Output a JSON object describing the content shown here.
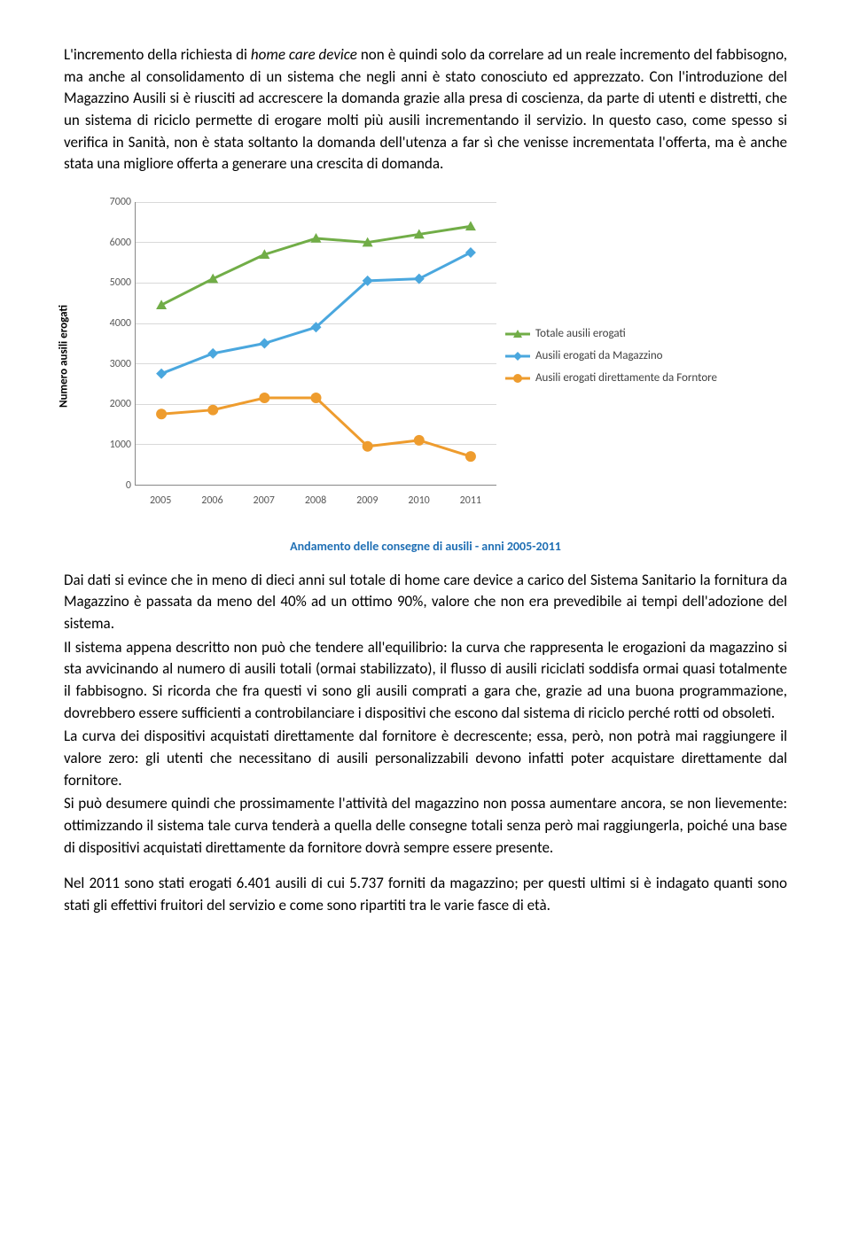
{
  "paragraphs": {
    "p1": "L'incremento della richiesta di home care device non è quindi solo da correlare ad un reale incremento del fabbisogno, ma anche al consolidamento di un sistema che negli anni è stato conosciuto ed apprezzato. Con l'introduzione del Magazzino Ausili si è riusciti ad accrescere la domanda grazie alla presa di coscienza, da parte di utenti e distretti, che un sistema di riciclo permette di erogare molti più ausili incrementando il servizio. In questo caso, come spesso si verifica in Sanità, non è stata soltanto la domanda dell'utenza a far sì che venisse incrementata l'offerta, ma è anche stata una migliore offerta a generare una crescita di domanda.",
    "p2": "Dai dati si evince che in meno di dieci anni sul totale di home care device a carico del Sistema Sanitario la fornitura da Magazzino è passata da meno del 40% ad un ottimo 90%, valore che non era prevedibile ai tempi dell'adozione del sistema.",
    "p3": "Il sistema appena descritto non può che tendere all'equilibrio: la curva che rappresenta le erogazioni da magazzino si sta avvicinando al numero di ausili totali (ormai stabilizzato), il flusso di ausili riciclati soddisfa ormai quasi totalmente il fabbisogno. Si ricorda che fra questi vi sono gli ausili comprati a gara che, grazie ad una buona programmazione, dovrebbero essere sufficienti a controbilanciare i dispositivi che escono dal sistema di riciclo perché rotti od obsoleti.",
    "p4": "La curva dei dispositivi acquistati direttamente dal fornitore è decrescente; essa, però, non potrà mai raggiungere il valore zero: gli utenti che necessitano di ausili personalizzabili devono infatti poter acquistare direttamente dal fornitore.",
    "p5": "Si può desumere quindi che prossimamente l'attività del magazzino non possa aumentare ancora, se non lievemente: ottimizzando il sistema tale curva tenderà a quella delle consegne totali senza però mai raggiungerla, poiché una base di dispositivi acquistati direttamente da fornitore dovrà sempre essere presente.",
    "p6": "Nel 2011 sono stati erogati 6.401 ausili di cui 5.737 forniti da magazzino; per questi ultimi si è indagato quanti sono stati gli effettivi fruitori del servizio e come sono ripartiti tra le varie fasce di età."
  },
  "chart": {
    "type": "line",
    "caption": "Andamento delle consegne di ausili - anni 2005-2011",
    "caption_color": "#1f6fb4",
    "ylabel": "Numero ausili erogati",
    "x_categories": [
      "2005",
      "2006",
      "2007",
      "2008",
      "2009",
      "2010",
      "2011"
    ],
    "ylim": [
      0,
      7000
    ],
    "ytick_step": 1000,
    "background_color": "#ffffff",
    "grid_color": "#d9d9d9",
    "axis_color": "#888888",
    "tick_font_color": "#595959",
    "line_width": 3,
    "marker_size": 6,
    "series": [
      {
        "name": "Totale ausili erogati",
        "color": "#71ad47",
        "marker": "triangle",
        "values": [
          4450,
          5100,
          5700,
          6100,
          6000,
          6200,
          6400
        ]
      },
      {
        "name": "Ausili erogati da Magazzino",
        "color": "#4aa7de",
        "marker": "diamond",
        "values": [
          2750,
          3250,
          3500,
          3900,
          5050,
          5100,
          5750
        ]
      },
      {
        "name": "Ausili erogati direttamente da Forntore",
        "color": "#ee9c2e",
        "marker": "circle",
        "values": [
          1750,
          1850,
          2150,
          2150,
          950,
          1100,
          700
        ]
      }
    ]
  }
}
